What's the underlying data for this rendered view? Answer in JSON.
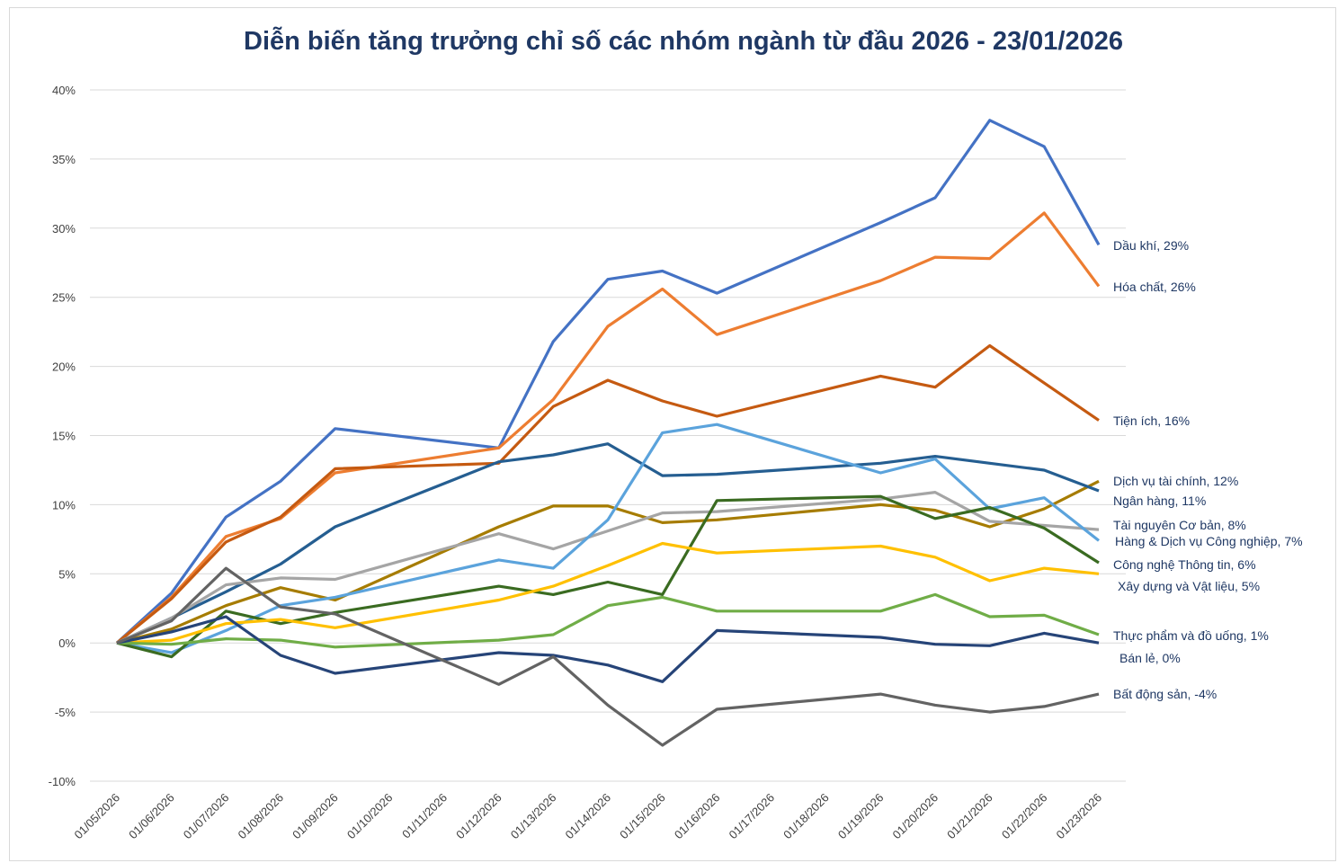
{
  "chart_data": {
    "type": "line",
    "title": "Diễn biến tăng trưởng chỉ số các nhóm ngành từ đầu 2026 - 23/01/2026",
    "xlabel": "",
    "ylabel": "",
    "ylim": [
      -10,
      40
    ],
    "yticks": [
      "-10%",
      "-5%",
      "0%",
      "5%",
      "10%",
      "15%",
      "20%",
      "25%",
      "30%",
      "35%",
      "40%"
    ],
    "grid": true,
    "legend": "end-of-line labels",
    "x": [
      "01/05/2026",
      "01/06/2026",
      "01/07/2026",
      "01/08/2026",
      "01/09/2026",
      "01/10/2026",
      "01/11/2026",
      "01/12/2026",
      "01/13/2026",
      "01/14/2026",
      "01/15/2026",
      "01/16/2026",
      "01/17/2026",
      "01/18/2026",
      "01/19/2026",
      "01/20/2026",
      "01/21/2026",
      "01/22/2026",
      "01/23/2026"
    ],
    "series": [
      {
        "name": "Dầu khí",
        "label": "Dầu khí, 29%",
        "color": "#4472c4",
        "values": [
          0,
          3.6,
          9.1,
          11.7,
          15.5,
          null,
          null,
          14.1,
          21.8,
          26.3,
          26.9,
          25.3,
          null,
          null,
          30.4,
          32.2,
          37.8,
          35.9,
          28.8
        ]
      },
      {
        "name": "Hóa chất",
        "label": "Hóa chất, 26%",
        "color": "#ed7d31",
        "values": [
          0,
          3.3,
          7.7,
          9.0,
          12.3,
          null,
          null,
          14.1,
          17.6,
          22.9,
          25.6,
          22.3,
          null,
          null,
          26.2,
          27.9,
          27.8,
          31.1,
          25.8
        ]
      },
      {
        "name": "Tiện ích",
        "label": "Tiện ích, 16%",
        "color": "#c55a11",
        "values": [
          0,
          3.2,
          7.3,
          9.1,
          12.6,
          null,
          null,
          13.0,
          17.1,
          19.0,
          17.5,
          16.4,
          null,
          null,
          19.3,
          18.5,
          21.5,
          18.8,
          16.1
        ]
      },
      {
        "name": "Dịch vụ tài chính",
        "label": "Dịch vụ tài chính, 12%",
        "color": "#a67c00",
        "values": [
          0,
          1.0,
          2.7,
          4.0,
          3.1,
          null,
          null,
          8.4,
          9.9,
          9.9,
          8.7,
          8.9,
          null,
          null,
          10.0,
          9.6,
          8.4,
          9.7,
          11.7
        ]
      },
      {
        "name": "Ngân hàng",
        "label": "Ngân hàng, 11%",
        "color": "#255e91",
        "values": [
          0,
          1.8,
          3.7,
          5.7,
          8.4,
          null,
          null,
          13.1,
          13.6,
          14.4,
          12.1,
          12.2,
          null,
          null,
          13.0,
          13.5,
          13.0,
          12.5,
          11.0
        ]
      },
      {
        "name": "Tài nguyên Cơ bản",
        "label": "Tài nguyên Cơ bản, 8%",
        "color": "#a5a5a5",
        "values": [
          0,
          1.8,
          4.2,
          4.7,
          4.6,
          null,
          null,
          7.9,
          6.8,
          8.1,
          9.4,
          9.5,
          null,
          null,
          10.4,
          10.9,
          8.8,
          8.5,
          8.2
        ]
      },
      {
        "name": "Hàng & Dịch vụ Công nghiệp",
        "label": "Hàng & Dịch vụ Công nghiệp, 7%",
        "color": "#5ba3dc",
        "values": [
          0,
          -0.7,
          0.9,
          2.7,
          3.3,
          null,
          null,
          6.0,
          5.4,
          8.9,
          15.2,
          15.8,
          null,
          null,
          12.3,
          13.3,
          9.7,
          10.5,
          7.4
        ]
      },
      {
        "name": "Công nghệ Thông tin",
        "label": "Công nghệ Thông tin, 6%",
        "color": "#3a6b21",
        "values": [
          0,
          -1.0,
          2.3,
          1.4,
          2.2,
          null,
          null,
          4.1,
          3.5,
          4.4,
          3.5,
          10.3,
          null,
          null,
          10.6,
          9.0,
          9.8,
          8.3,
          5.8
        ]
      },
      {
        "name": "Xây dựng và Vật liệu",
        "label": "Xây dựng và Vật liệu, 5%",
        "color": "#ffc000",
        "values": [
          0,
          0.2,
          1.4,
          1.7,
          1.1,
          null,
          null,
          3.1,
          4.1,
          5.6,
          7.2,
          6.5,
          null,
          null,
          7.0,
          6.2,
          4.5,
          5.4,
          5.0
        ]
      },
      {
        "name": "Thực phẩm và đồ uống",
        "label": "Thực phẩm và đồ uống, 1%",
        "color": "#70ad47",
        "values": [
          0,
          -0.1,
          0.3,
          0.2,
          -0.3,
          null,
          null,
          0.2,
          0.6,
          2.7,
          3.3,
          2.3,
          null,
          null,
          2.3,
          3.5,
          1.9,
          2.0,
          0.6
        ]
      },
      {
        "name": "Bán lẻ",
        "label": "Bán lẻ, 0%",
        "color": "#264478",
        "values": [
          0,
          0.8,
          1.9,
          -0.9,
          -2.2,
          null,
          null,
          -0.7,
          -0.9,
          -1.6,
          -2.8,
          0.9,
          null,
          null,
          0.4,
          -0.1,
          -0.2,
          0.7,
          0.0
        ]
      },
      {
        "name": "Bất động sản",
        "label": "Bất động sản, -4%",
        "color": "#636363",
        "values": [
          0,
          1.6,
          5.4,
          2.6,
          2.1,
          null,
          null,
          -3.0,
          -1.0,
          -4.5,
          -7.4,
          -4.8,
          null,
          null,
          -3.7,
          -4.5,
          -5.0,
          -4.6,
          -3.7
        ]
      }
    ]
  }
}
